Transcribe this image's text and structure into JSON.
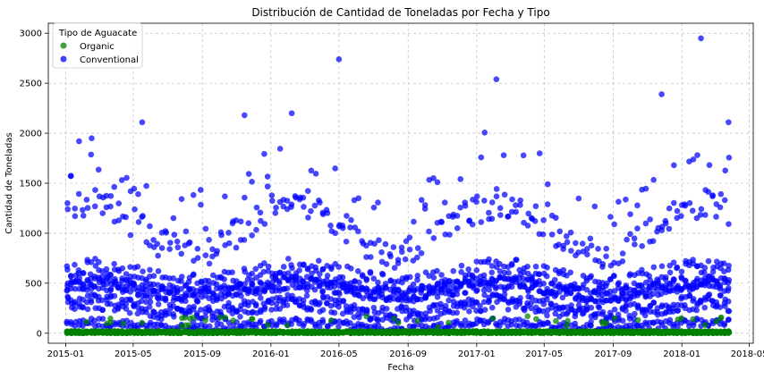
{
  "chart_data": {
    "type": "scatter",
    "title": "Distribución de Cantidad de Toneladas por Fecha y Tipo",
    "xlabel": "Fecha",
    "ylabel": "Cantidad de Toneladas",
    "xlim": [
      "2014-12-01",
      "2018-05-08"
    ],
    "ylim": [
      -100,
      3100
    ],
    "x_ticks": [
      "2015-01",
      "2015-05",
      "2015-09",
      "2016-01",
      "2016-05",
      "2016-09",
      "2017-01",
      "2017-05",
      "2017-09",
      "2018-01",
      "2018-05"
    ],
    "y_ticks": [
      0,
      500,
      1000,
      1500,
      2000,
      2500,
      3000
    ],
    "grid": true,
    "legend": {
      "title": "Tipo de Aguacate",
      "placement": "top-left"
    },
    "series": [
      {
        "name": "Organic",
        "color": "#008000"
      },
      {
        "name": "Conventional",
        "color": "#0000ff"
      }
    ],
    "notable_points": [
      {
        "series": "Conventional",
        "x": "2015-05-17",
        "y": 2110
      },
      {
        "series": "Conventional",
        "x": "2015-11-15",
        "y": 2180
      },
      {
        "series": "Conventional",
        "x": "2016-02-07",
        "y": 2200
      },
      {
        "series": "Conventional",
        "x": "2016-05-01",
        "y": 2740
      },
      {
        "series": "Conventional",
        "x": "2017-02-05",
        "y": 2540
      },
      {
        "series": "Conventional",
        "x": "2017-11-26",
        "y": 2390
      },
      {
        "series": "Conventional",
        "x": "2018-02-04",
        "y": 2950
      },
      {
        "series": "Conventional",
        "x": "2018-03-25",
        "y": 2110
      }
    ],
    "generation": {
      "x_start": "2015-01-04",
      "x_end": "2018-03-25",
      "conventional_bands": [
        {
          "base": 1050,
          "amp": 250,
          "jitter": 150,
          "count": 2
        },
        {
          "base": 440,
          "amp": 60,
          "jitter": 70,
          "count": 4
        },
        {
          "base": 250,
          "amp": 60,
          "jitter": 80,
          "count": 3
        },
        {
          "base": 580,
          "amp": 80,
          "jitter": 90,
          "count": 2
        },
        {
          "base": 80,
          "amp": 30,
          "jitter": 40,
          "count": 2
        }
      ],
      "organic_bands": [
        {
          "base": 10,
          "amp": 5,
          "jitter": 12,
          "count": 8
        }
      ]
    }
  }
}
